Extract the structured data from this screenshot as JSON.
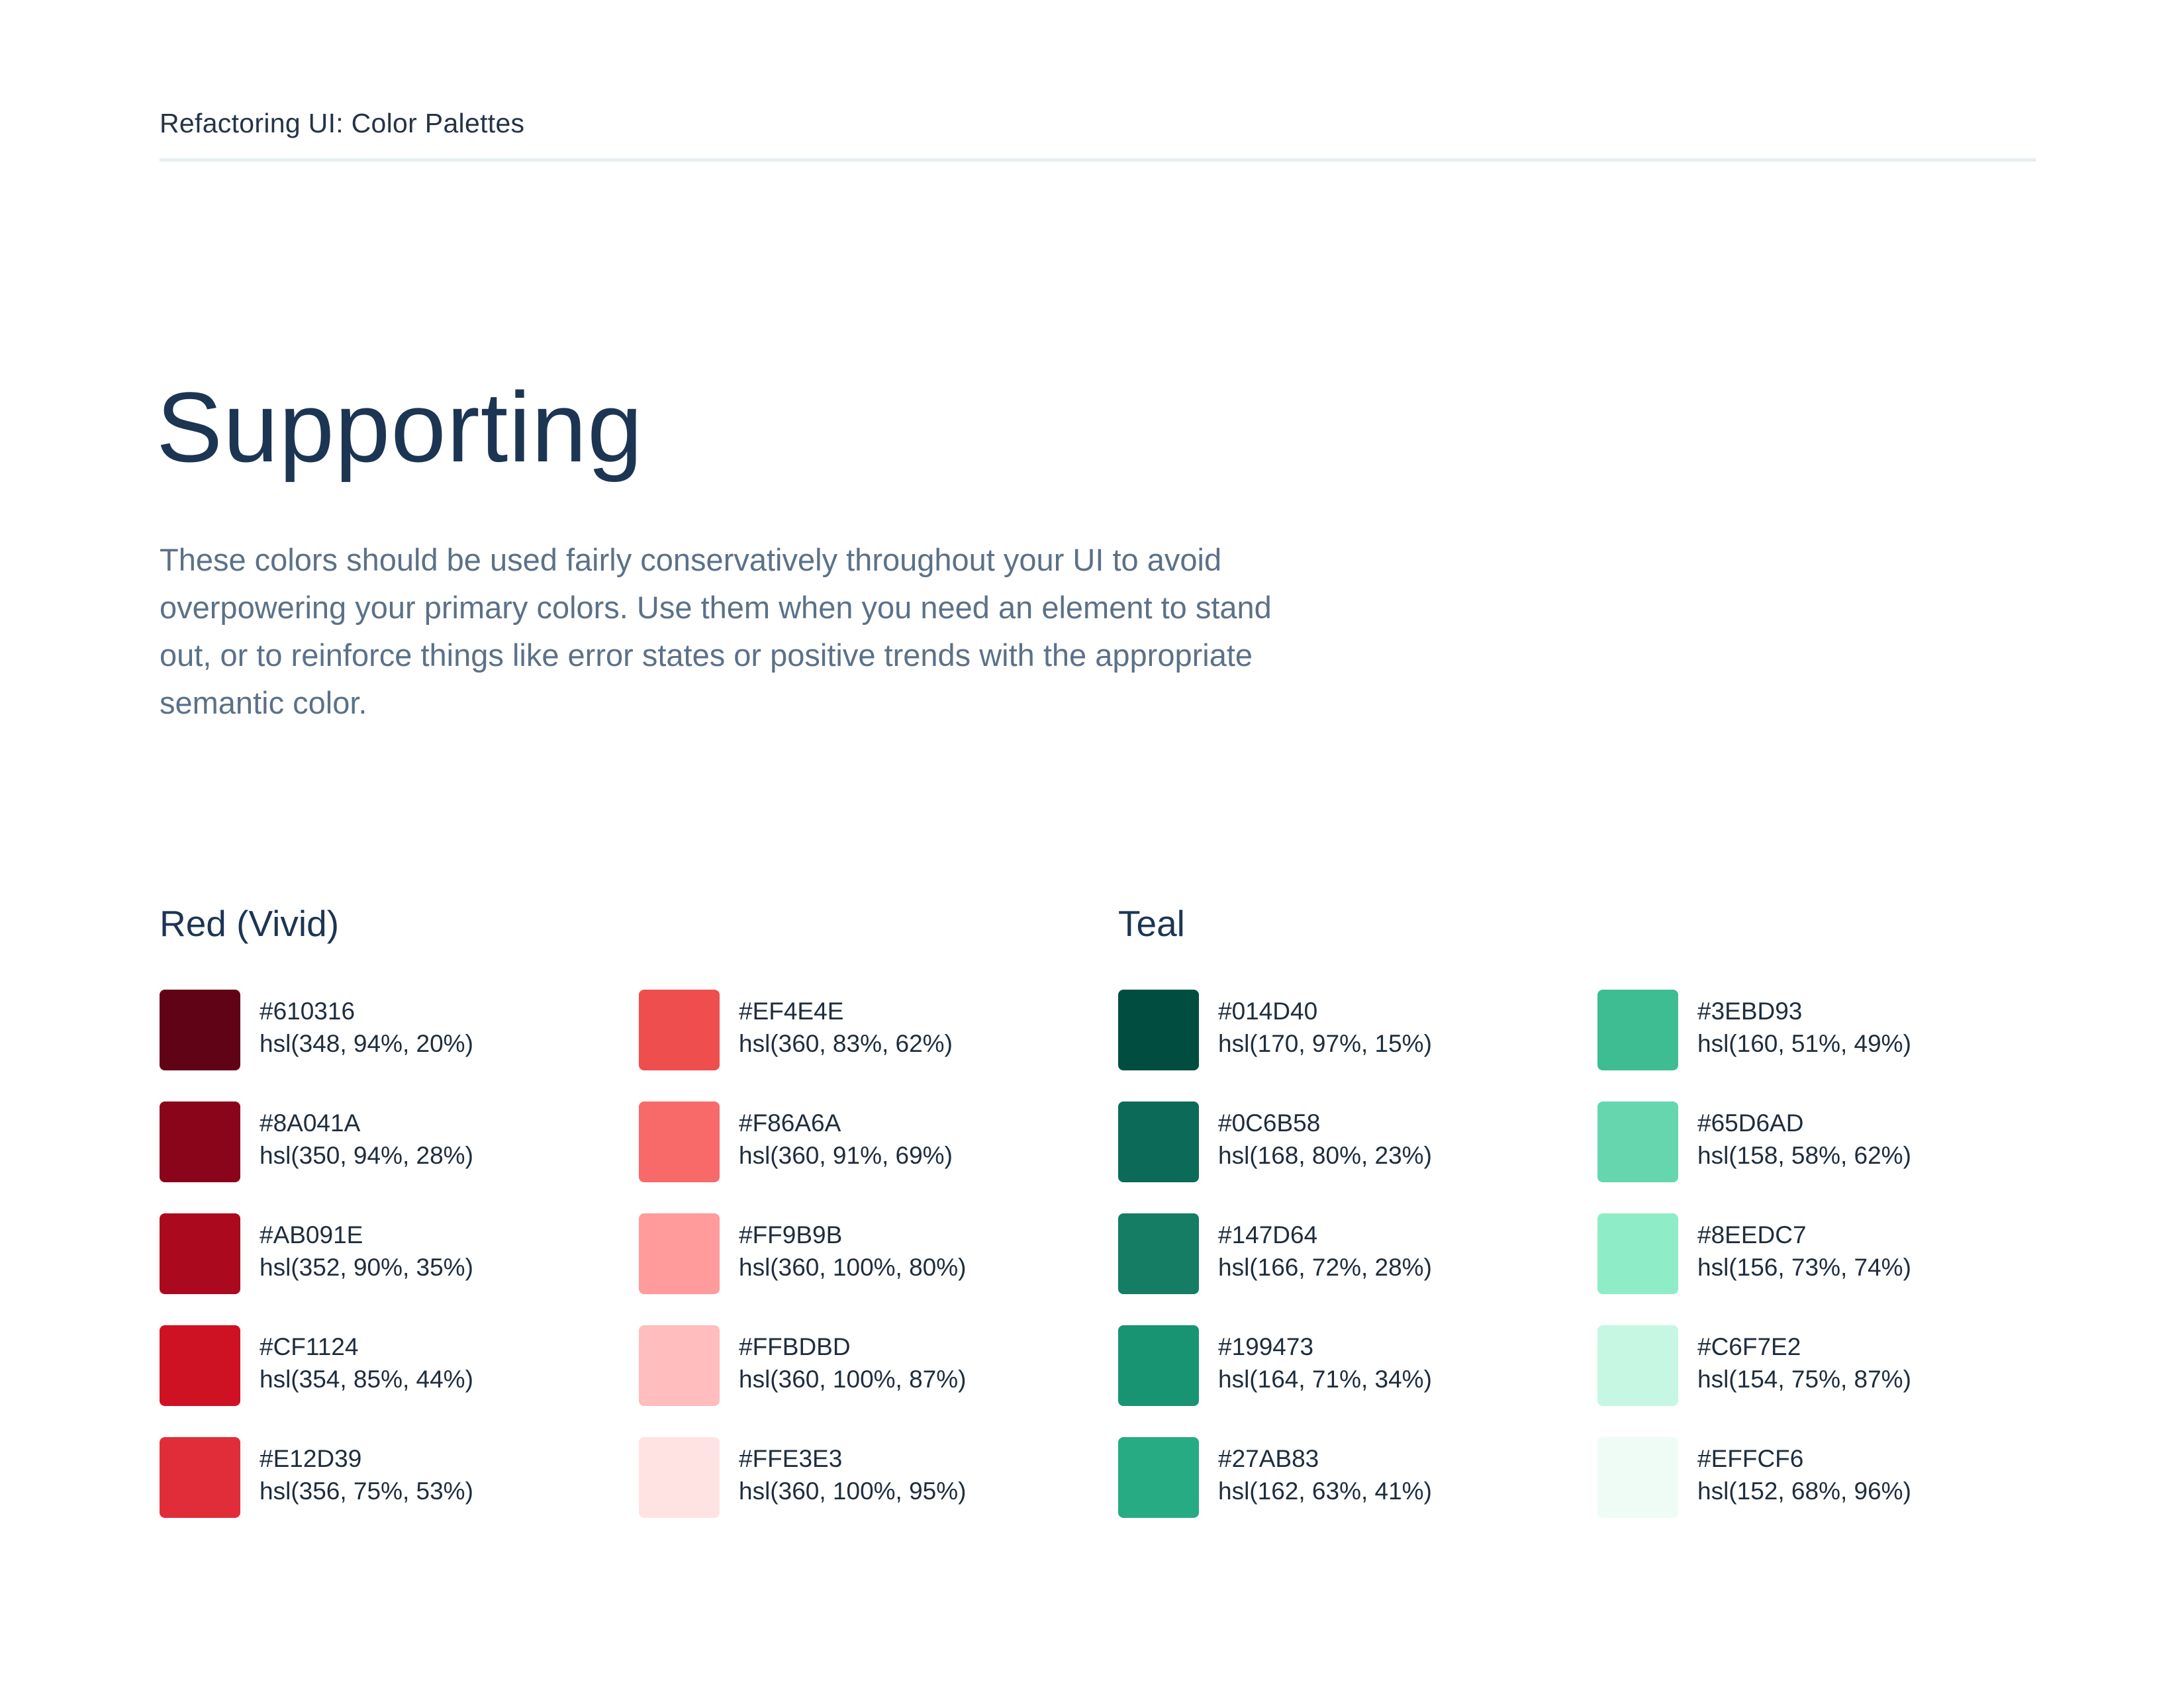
{
  "header": {
    "title": "Refactoring UI: Color Palettes"
  },
  "page": {
    "title": "Supporting",
    "intro": "These colors should be used fairly conservatively throughout your UI to avoid overpowering your primary colors. Use them when you need an element to stand out, or to reinforce things like error states or positive trends with the appropriate semantic color."
  },
  "palettes": {
    "red": {
      "title": "Red (Vivid)",
      "swatches": [
        {
          "hex": "#610316",
          "hsl": "hsl(348, 94%, 20%)"
        },
        {
          "hex": "#8A041A",
          "hsl": "hsl(350, 94%, 28%)"
        },
        {
          "hex": "#AB091E",
          "hsl": "hsl(352, 90%, 35%)"
        },
        {
          "hex": "#CF1124",
          "hsl": "hsl(354, 85%, 44%)"
        },
        {
          "hex": "#E12D39",
          "hsl": "hsl(356, 75%, 53%)"
        },
        {
          "hex": "#EF4E4E",
          "hsl": "hsl(360, 83%, 62%)"
        },
        {
          "hex": "#F86A6A",
          "hsl": "hsl(360, 91%, 69%)"
        },
        {
          "hex": "#FF9B9B",
          "hsl": "hsl(360, 100%, 80%)"
        },
        {
          "hex": "#FFBDBD",
          "hsl": "hsl(360, 100%, 87%)"
        },
        {
          "hex": "#FFE3E3",
          "hsl": "hsl(360, 100%, 95%)"
        }
      ]
    },
    "teal": {
      "title": "Teal",
      "swatches": [
        {
          "hex": "#014D40",
          "hsl": "hsl(170, 97%, 15%)"
        },
        {
          "hex": "#0C6B58",
          "hsl": "hsl(168, 80%, 23%)"
        },
        {
          "hex": "#147D64",
          "hsl": "hsl(166, 72%, 28%)"
        },
        {
          "hex": "#199473",
          "hsl": "hsl(164, 71%, 34%)"
        },
        {
          "hex": "#27AB83",
          "hsl": "hsl(162, 63%, 41%)"
        },
        {
          "hex": "#3EBD93",
          "hsl": "hsl(160, 51%, 49%)"
        },
        {
          "hex": "#65D6AD",
          "hsl": "hsl(158, 58%, 62%)"
        },
        {
          "hex": "#8EEDC7",
          "hsl": "hsl(156, 73%, 74%)"
        },
        {
          "hex": "#C6F7E2",
          "hsl": "hsl(154, 75%, 87%)"
        },
        {
          "hex": "#EFFCF6",
          "hsl": "hsl(152, 68%, 96%)"
        }
      ]
    }
  }
}
